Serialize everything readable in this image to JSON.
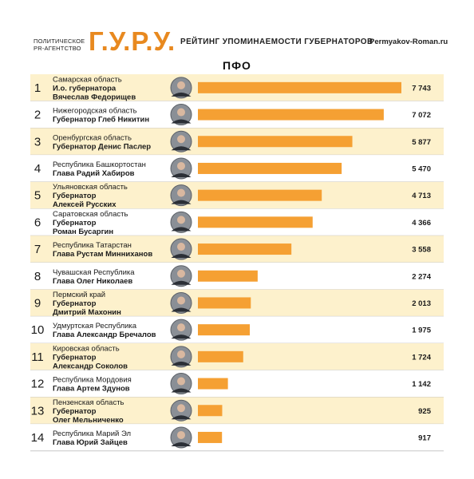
{
  "header": {
    "agency_line1": "ПОЛИТИЧЕСКОЕ",
    "agency_line2": "PR-АГЕНТСТВО",
    "brand": "Г.У.Р.У.",
    "subtitle": "РЕЙТИНГ УПОМИНАЕМОСТИ ГУБЕРНАТОРОВ",
    "site": "Permyakov-Roman.ru",
    "region": "ПФО"
  },
  "colors": {
    "bar": "#f5a033",
    "row_highlight": "#fdf1cc",
    "row_plain": "#ffffff",
    "divider": "#bfbfbf",
    "brand": "#e8891f"
  },
  "chart_data": {
    "type": "bar",
    "orientation": "horizontal",
    "categories": [
      "Самарская область",
      "Нижегородская область",
      "Оренбургская область",
      "Республика Башкортостан",
      "Ульяновская область",
      "Саратовская область",
      "Республика Татарстан",
      "Чувашская Республика",
      "Пермский край",
      "Удмуртская Республика",
      "Кировская область",
      "Республика Мордовия",
      "Пензенская область",
      "Республика Марий Эл"
    ],
    "values": [
      7743,
      7072,
      5877,
      5470,
      4713,
      4366,
      3558,
      2274,
      2013,
      1975,
      1724,
      1142,
      925,
      917
    ],
    "value_labels": [
      "7 743",
      "7 072",
      "5 877",
      "5 470",
      "4 713",
      "4 366",
      "3 558",
      "2 274",
      "2 013",
      "1 975",
      "1 724",
      "1 142",
      "925",
      "917"
    ],
    "ranks": [
      "1",
      "2",
      "3",
      "4",
      "5",
      "6",
      "7",
      "8",
      "9",
      "10",
      "11",
      "12",
      "13",
      "14"
    ],
    "governors": [
      [
        "И.о. губернатора",
        "Вячеслав Федорищев"
      ],
      [
        "Губернатор Глеб Никитин"
      ],
      [
        "Губернатор Денис Паслер"
      ],
      [
        "Глава Радий Хабиров"
      ],
      [
        "Губернатор",
        "Алексей Русских"
      ],
      [
        "Губернатор",
        "Роман Бусаргин"
      ],
      [
        "Глава Рустам Минниханов"
      ],
      [
        "Глава Олег Николаев"
      ],
      [
        "Губернатор",
        "Дмитрий Махонин"
      ],
      [
        "Глава Александр Бречалов"
      ],
      [
        "Губернатор",
        "Александр Соколов"
      ],
      [
        "Глава Артем Здунов"
      ],
      [
        "Губернатор",
        "Олег Мельниченко"
      ],
      [
        "Глава Юрий Зайцев"
      ]
    ],
    "highlighted_rows": [
      0,
      2,
      4,
      6,
      8,
      10,
      12
    ],
    "title": "",
    "xlabel": "",
    "ylabel": "",
    "grid": false,
    "legend": "none"
  }
}
